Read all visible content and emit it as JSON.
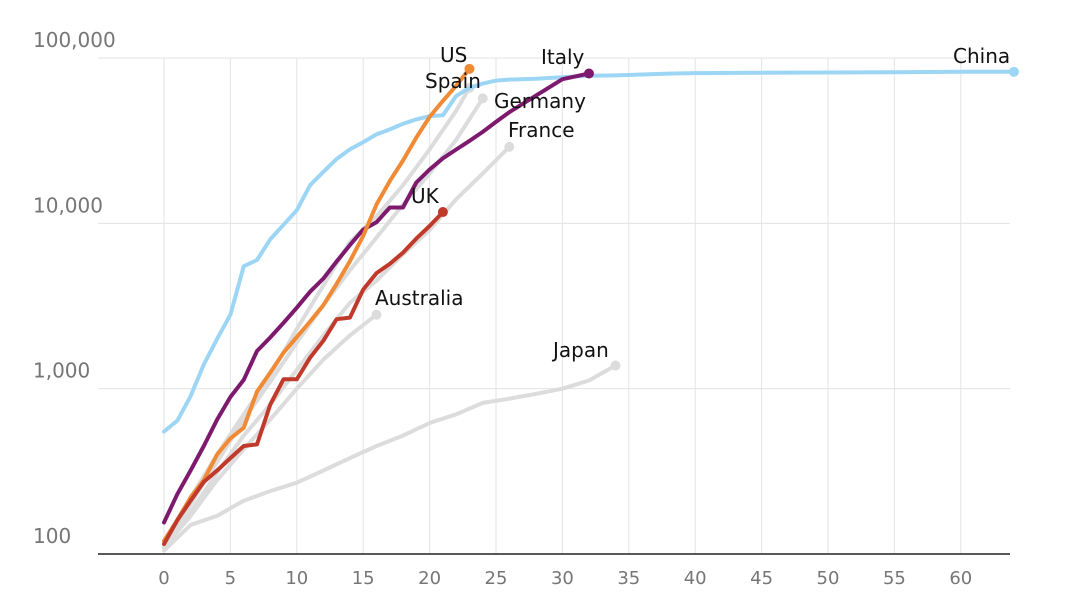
{
  "chart_data": {
    "type": "line",
    "title": "",
    "xlabel": "",
    "ylabel": "",
    "y_scale": "log",
    "xlim": [
      -5,
      64
    ],
    "ylim": [
      100,
      100000
    ],
    "x_ticks": [
      0,
      5,
      10,
      15,
      20,
      25,
      30,
      35,
      40,
      45,
      50,
      55,
      60
    ],
    "y_ticks": [
      100,
      1000,
      10000,
      100000
    ],
    "y_tick_labels": [
      "100",
      "1,000",
      "10,000",
      "100,000"
    ],
    "grid": true,
    "legend": "none",
    "series": [
      {
        "name": "Japan",
        "color": "#dcdcdc",
        "x": [
          0,
          2,
          4,
          6,
          8,
          10,
          12,
          14,
          16,
          18,
          20,
          22,
          24,
          26,
          28,
          30,
          32,
          34
        ],
        "y": [
          105,
          150,
          170,
          210,
          240,
          270,
          320,
          380,
          450,
          520,
          620,
          700,
          820,
          870,
          930,
          1000,
          1120,
          1380
        ]
      },
      {
        "name": "Australia",
        "color": "#dcdcdc",
        "x": [
          0,
          2,
          4,
          6,
          8,
          10,
          12,
          14,
          16
        ],
        "y": [
          110,
          170,
          280,
          430,
          650,
          1000,
          1500,
          2100,
          2800
        ]
      },
      {
        "name": "France",
        "color": "#dcdcdc",
        "x": [
          0,
          2,
          4,
          6,
          8,
          10,
          12,
          14,
          16,
          18,
          20,
          22,
          24,
          26
        ],
        "y": [
          110,
          180,
          310,
          520,
          800,
          1300,
          2100,
          3300,
          4500,
          6500,
          9100,
          14000,
          20000,
          29000
        ]
      },
      {
        "name": "Germany",
        "color": "#dcdcdc",
        "x": [
          0,
          2,
          4,
          6,
          8,
          10,
          12,
          14,
          16,
          18,
          20,
          22,
          24
        ],
        "y": [
          115,
          200,
          360,
          650,
          1100,
          1900,
          3200,
          5200,
          8200,
          13000,
          20000,
          32000,
          57000
        ]
      },
      {
        "name": "Spain",
        "color": "#dcdcdc",
        "x": [
          0,
          2,
          4,
          6,
          8,
          10,
          12,
          14,
          16,
          18,
          20,
          22,
          23
        ],
        "y": [
          120,
          220,
          400,
          700,
          1200,
          2300,
          4200,
          7700,
          11000,
          17000,
          28000,
          48000,
          66000
        ]
      },
      {
        "name": "China",
        "color": "#9dd6f5",
        "x": [
          0,
          1,
          2,
          3,
          4,
          5,
          6,
          7,
          8,
          9,
          10,
          11,
          12,
          13,
          14,
          15,
          16,
          17,
          18,
          19,
          20,
          21,
          22,
          23,
          24,
          25,
          26,
          28,
          30,
          32,
          34,
          36,
          38,
          40,
          45,
          50,
          55,
          60,
          64
        ],
        "y": [
          550,
          640,
          900,
          1400,
          2000,
          2800,
          5500,
          6000,
          8000,
          9800,
          12000,
          17000,
          20500,
          24500,
          28000,
          31000,
          34500,
          37000,
          40000,
          42500,
          44500,
          45000,
          59000,
          66000,
          70000,
          73000,
          74000,
          75000,
          76500,
          78000,
          78500,
          79500,
          80500,
          81000,
          81500,
          81700,
          82000,
          82500,
          82500
        ]
      },
      {
        "name": "Italy",
        "color": "#7d1a6e",
        "x": [
          0,
          1,
          2,
          3,
          4,
          5,
          6,
          7,
          8,
          9,
          10,
          11,
          12,
          13,
          14,
          15,
          16,
          17,
          18,
          19,
          20,
          21,
          22,
          23,
          24,
          25,
          26,
          28,
          30,
          32
        ],
        "y": [
          155,
          230,
          320,
          450,
          650,
          890,
          1130,
          1690,
          2040,
          2500,
          3090,
          3860,
          4640,
          5880,
          7380,
          9170,
          10150,
          12460,
          12460,
          17660,
          21160,
          24750,
          27980,
          31510,
          35710,
          41040,
          47020,
          59140,
          74390,
          80590
        ]
      },
      {
        "name": "US",
        "color": "#f08a35",
        "x": [
          0,
          1,
          2,
          3,
          4,
          5,
          6,
          7,
          8,
          9,
          10,
          11,
          12,
          13,
          14,
          15,
          16,
          17,
          18,
          19,
          20,
          21,
          22,
          23
        ],
        "y": [
          120,
          160,
          220,
          280,
          400,
          500,
          580,
          960,
          1250,
          1650,
          2050,
          2550,
          3200,
          4300,
          5900,
          8400,
          13000,
          18000,
          24000,
          33000,
          44000,
          55000,
          68000,
          86000
        ]
      },
      {
        "name": "UK",
        "color": "#c0392b",
        "x": [
          0,
          1,
          2,
          3,
          4,
          5,
          6,
          7,
          8,
          9,
          10,
          11,
          12,
          13,
          14,
          15,
          16,
          17,
          18,
          19,
          20,
          21
        ],
        "y": [
          115,
          160,
          210,
          273,
          320,
          380,
          450,
          460,
          800,
          1140,
          1140,
          1540,
          1950,
          2630,
          2690,
          3980,
          5000,
          5680,
          6650,
          8080,
          9640,
          11700
        ]
      }
    ]
  },
  "labels": {
    "japan": "Japan",
    "australia": "Australia",
    "france": "France",
    "germany": "Germany",
    "spain": "Spain",
    "china": "China",
    "italy": "Italy",
    "us": "US",
    "uk": "UK"
  }
}
